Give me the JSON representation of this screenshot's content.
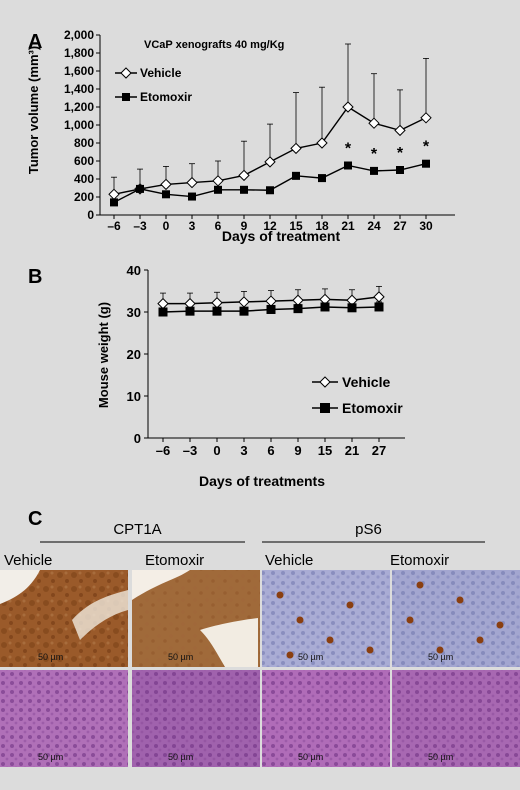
{
  "panel_a_letter": "A",
  "panel_b_letter": "B",
  "panel_c_letter": "C",
  "chart_data": [
    {
      "type": "line",
      "annotation": "VCaP xenografts  40 mg/Kg",
      "xlabel": "Days of treatment",
      "ylabel": "Tumor volume (mm³)",
      "x": [
        -6,
        -3,
        0,
        3,
        6,
        9,
        12,
        15,
        18,
        21,
        24,
        27,
        30
      ],
      "ylim": [
        0,
        2000
      ],
      "yticks": [
        "0",
        "200",
        "400",
        "600",
        "800",
        "1,000",
        "1,200",
        "1,400",
        "1,600",
        "1,800",
        "2,000"
      ],
      "ytick_values": [
        0,
        200,
        400,
        600,
        800,
        1000,
        1200,
        1400,
        1600,
        1800,
        2000
      ],
      "legend": "upper-left",
      "series": [
        {
          "name": "Vehicle",
          "values": [
            230,
            290,
            340,
            360,
            380,
            440,
            590,
            740,
            800,
            1200,
            1020,
            940,
            1080
          ],
          "err": [
            190,
            220,
            200,
            210,
            220,
            380,
            420,
            620,
            620,
            700,
            550,
            450,
            660
          ]
        },
        {
          "name": "Etomoxir",
          "values": [
            140,
            290,
            230,
            205,
            280,
            280,
            275,
            435,
            410,
            550,
            490,
            500,
            570
          ],
          "err": [
            0,
            0,
            0,
            0,
            0,
            0,
            0,
            0,
            0,
            0,
            0,
            0,
            0
          ]
        }
      ],
      "significance_marks": [
        {
          "x": 21,
          "label": "*"
        },
        {
          "x": 24,
          "label": "*"
        },
        {
          "x": 27,
          "label": "*"
        },
        {
          "x": 30,
          "label": "*"
        }
      ]
    },
    {
      "type": "line",
      "xlabel": "Days of treatments",
      "ylabel": "Mouse weight (g)",
      "x": [
        "-6",
        "-3",
        "0",
        "3",
        "6",
        "9",
        "15",
        "21",
        "27"
      ],
      "ylim": [
        0,
        40
      ],
      "yticks": [
        "0",
        "10",
        "20",
        "30",
        "40"
      ],
      "ytick_values": [
        0,
        10,
        20,
        30,
        40
      ],
      "legend": "lower-right",
      "series": [
        {
          "name": "Vehicle",
          "values": [
            32.0,
            32.0,
            32.2,
            32.4,
            32.6,
            32.8,
            33.0,
            32.8,
            33.6
          ],
          "err": [
            2.5,
            2.5,
            2.5,
            2.5,
            2.5,
            2.5,
            2.5,
            2.5,
            2.5
          ]
        },
        {
          "name": "Etomoxir",
          "values": [
            30.0,
            30.2,
            30.2,
            30.2,
            30.6,
            30.8,
            31.2,
            31.0,
            31.2
          ],
          "err": [
            0,
            0,
            0,
            0,
            0,
            1.0,
            0,
            0,
            1.2
          ]
        }
      ]
    }
  ],
  "panel_c": {
    "groups": [
      {
        "label": "CPT1A",
        "columns": [
          "Vehicle",
          "Etomoxir"
        ]
      },
      {
        "label": "pS6",
        "columns": [
          "Vehicle",
          "Etomoxir"
        ]
      }
    ],
    "scale_label": "50 µm",
    "colors": {
      "dab_brown": "#9a5a2a",
      "hematoxylin_blue": "#8b8fc0",
      "he_purple": "#9a5aa8"
    }
  }
}
